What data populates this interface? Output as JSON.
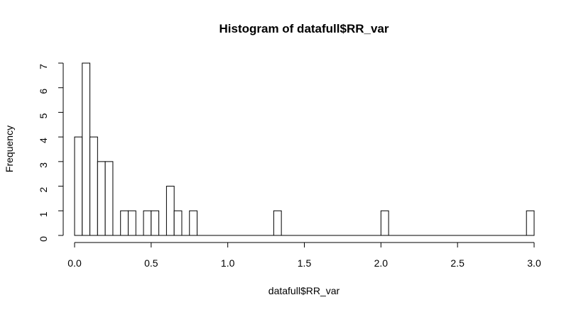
{
  "chart_data": {
    "type": "bar",
    "subtype": "histogram",
    "title": "Histogram of datafull$RR_var",
    "xlabel": "datafull$RR_var",
    "ylabel": "Frequency",
    "xlim": [
      0,
      3.0
    ],
    "ylim": [
      0,
      7
    ],
    "bin_width": 0.05,
    "bins_start": 0.0,
    "counts": [
      4,
      7,
      4,
      3,
      3,
      0,
      1,
      1,
      0,
      1,
      1,
      0,
      2,
      1,
      0,
      1,
      0,
      0,
      0,
      0,
      0,
      0,
      0,
      0,
      0,
      0,
      1,
      0,
      0,
      0,
      0,
      0,
      0,
      0,
      0,
      0,
      0,
      0,
      0,
      0,
      1,
      0,
      0,
      0,
      0,
      0,
      0,
      0,
      0,
      0,
      0,
      0,
      0,
      0,
      0,
      0,
      0,
      0,
      0,
      1
    ],
    "x_ticks": [
      "0.0",
      "0.5",
      "1.0",
      "1.5",
      "2.0",
      "2.5",
      "3.0"
    ],
    "x_tick_values": [
      0,
      0.5,
      1.0,
      1.5,
      2.0,
      2.5,
      3.0
    ],
    "y_ticks": [
      "0",
      "1",
      "2",
      "3",
      "4",
      "5",
      "6",
      "7"
    ],
    "y_tick_values": [
      0,
      1,
      2,
      3,
      4,
      5,
      6,
      7
    ],
    "grid": false,
    "legend": "none",
    "bar_fill": "#ffffff",
    "bar_stroke": "#000000"
  }
}
